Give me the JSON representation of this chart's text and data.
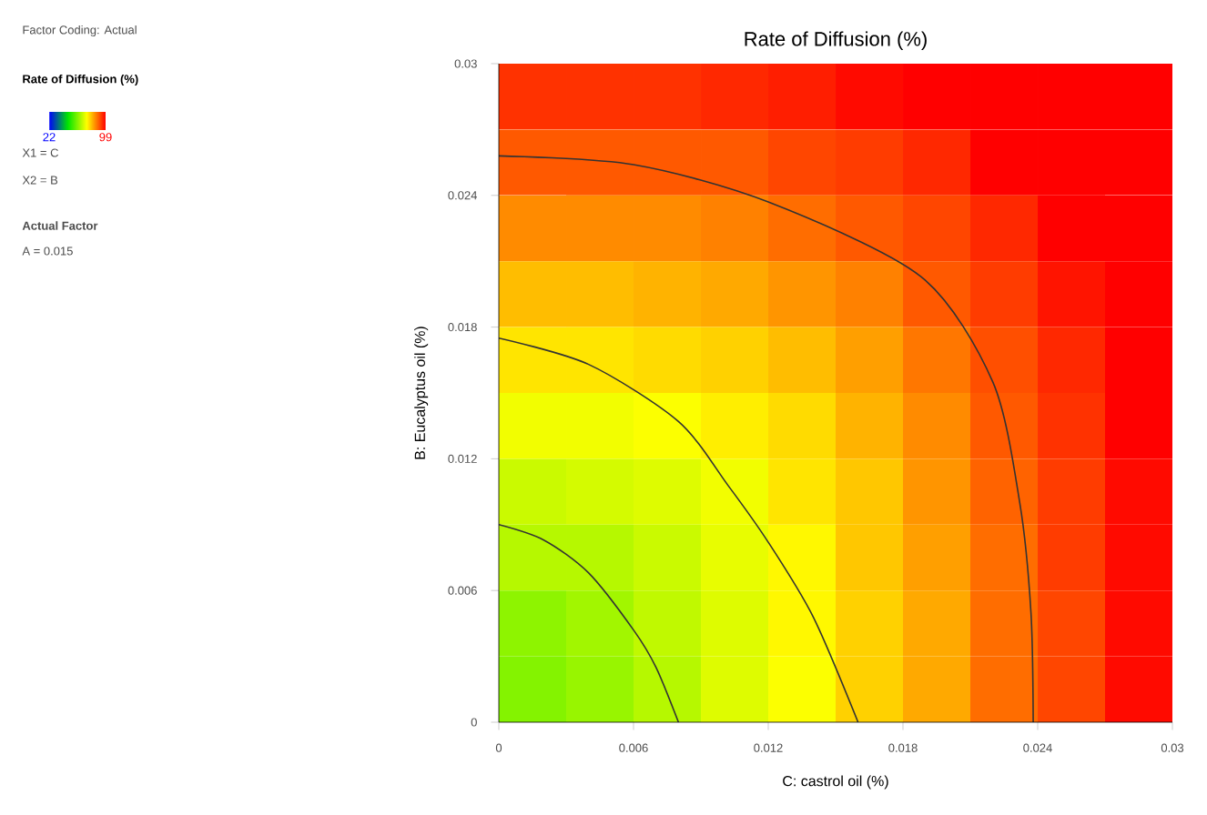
{
  "chart_data": {
    "type": "heatmap",
    "title": "Rate of Diffusion (%)",
    "xlabel": "C: castrol oil (%)",
    "ylabel": "B: Eucalyptus oil (%)",
    "legend_title": "Rate of Diffusion (%)",
    "annotations": [
      "Factor Coding: Actual",
      "X1 = C",
      "X2 = B",
      "Actual Factor",
      "A = 0.015"
    ],
    "xlim": [
      0,
      0.03
    ],
    "ylim": [
      0,
      0.03
    ],
    "xticks": [
      0,
      0.006,
      0.012,
      0.018,
      0.024,
      0.03
    ],
    "yticks": [
      0,
      0.006,
      0.012,
      0.018,
      0.024,
      0.03
    ],
    "clim": [
      22,
      99
    ],
    "cticks": [
      22,
      99
    ],
    "cells": [
      [
        94,
        94,
        94,
        95,
        96,
        98,
        99,
        99,
        99,
        99
      ],
      [
        90,
        90,
        90,
        90,
        92,
        93,
        95,
        99,
        99,
        99
      ],
      [
        85,
        85,
        85,
        86,
        88,
        90,
        92,
        95,
        99,
        99
      ],
      [
        80,
        80,
        81,
        82,
        84,
        86,
        90,
        93,
        97,
        99
      ],
      [
        76,
        76,
        77,
        78,
        80,
        83,
        87,
        91,
        95,
        99
      ],
      [
        72,
        72,
        73,
        75,
        77,
        81,
        85,
        90,
        94,
        99
      ],
      [
        68,
        69,
        70,
        72,
        76,
        79,
        84,
        89,
        93,
        98
      ],
      [
        66,
        66,
        68,
        71,
        74,
        79,
        83,
        88,
        93,
        98
      ],
      [
        62,
        64,
        67,
        70,
        74,
        78,
        82,
        88,
        92,
        98
      ],
      [
        61,
        63,
        66,
        70,
        73,
        78,
        82,
        88,
        92,
        98
      ]
    ],
    "series": [
      {
        "type": "line",
        "color": "#333333",
        "x": [
          0,
          0.002,
          0.004,
          0.006,
          0.007,
          0.008
        ],
        "values": [
          0.009,
          0.0083,
          0.0068,
          0.0042,
          0.0025,
          0
        ]
      },
      {
        "type": "line",
        "color": "#333333",
        "x": [
          0,
          0.004,
          0.008,
          0.0102,
          0.012,
          0.014,
          0.016
        ],
        "values": [
          0.0175,
          0.0163,
          0.0137,
          0.0108,
          0.0082,
          0.0048,
          0
        ]
      },
      {
        "type": "line",
        "color": "#333333",
        "x": [
          0,
          0.006,
          0.012,
          0.0188,
          0.022,
          0.0232,
          0.0237,
          0.0238
        ],
        "values": [
          0.0258,
          0.0254,
          0.0237,
          0.0203,
          0.0155,
          0.01,
          0.005,
          0
        ]
      }
    ]
  }
}
